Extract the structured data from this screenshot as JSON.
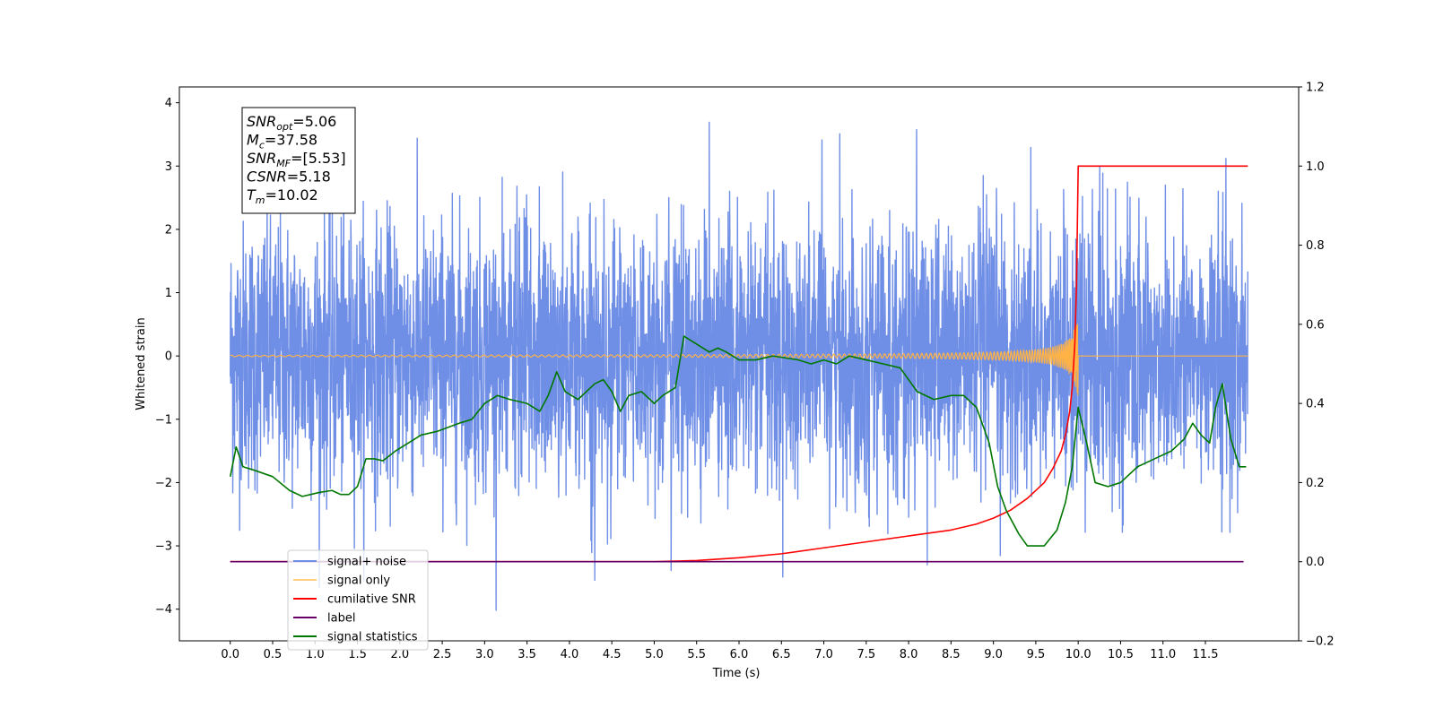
{
  "chart_data": {
    "type": "line",
    "xlabel": "Time (s)",
    "ylabel": "Whitened strain",
    "xlim": [
      -0.6,
      12.6
    ],
    "ylim": [
      -4.5,
      4.25
    ],
    "y2lim": [
      -0.2,
      1.2
    ],
    "x_ticks": [
      0.0,
      0.5,
      1.0,
      1.5,
      2.0,
      2.5,
      3.0,
      3.5,
      4.0,
      4.5,
      5.0,
      5.5,
      6.0,
      6.5,
      7.0,
      7.5,
      8.0,
      8.5,
      9.0,
      9.5,
      10.0,
      10.5,
      11.0,
      11.5
    ],
    "x_tick_labels": [
      "0.0",
      "0.5",
      "1.0",
      "1.5",
      "2.0",
      "2.5",
      "3.0",
      "3.5",
      "4.0",
      "4.5",
      "5.0",
      "5.5",
      "6.0",
      "6.5",
      "7.0",
      "7.5",
      "8.0",
      "8.5",
      "9.0",
      "9.5",
      "10.0",
      "10.5",
      "11.0",
      "11.5"
    ],
    "y_ticks": [
      -4,
      -3,
      -2,
      -1,
      0,
      1,
      2,
      3,
      4
    ],
    "y_tick_labels": [
      "−4",
      "−3",
      "−2",
      "−1",
      "0",
      "1",
      "2",
      "3",
      "4"
    ],
    "y2_ticks": [
      -0.2,
      0.0,
      0.2,
      0.4,
      0.6,
      0.8,
      1.0,
      1.2
    ],
    "y2_tick_labels": [
      "−0.2",
      "0.0",
      "0.2",
      "0.4",
      "0.6",
      "0.8",
      "1.0",
      "1.2"
    ],
    "grid": false,
    "legend_placement": "lower-left",
    "annotation": {
      "lines": [
        {
          "base": "SNR",
          "sub": "opt",
          "rest": "=5.06"
        },
        {
          "base": "M",
          "sub": "c",
          "rest": "=37.58"
        },
        {
          "base": "SNR",
          "sub": "MF",
          "rest": "=[5.53]"
        },
        {
          "base": "CSNR",
          "sub": "",
          "rest": "=5.18"
        },
        {
          "base": "T",
          "sub": "m",
          "rest": "=10.02"
        }
      ]
    },
    "series": [
      {
        "name": "signal+ noise",
        "color": "#6f8ee6",
        "axis": "left",
        "x_range": [
          0.0,
          12.0
        ],
        "envelope_upper_range": [
          1.5,
          3.9
        ],
        "envelope_lower_range": [
          -4.1,
          -1.5
        ]
      },
      {
        "name": "signal only",
        "color": "#ffb347",
        "axis": "left",
        "x_range": [
          0.0,
          12.0
        ],
        "merger_time": 10.0,
        "peak_amplitude": 0.9
      },
      {
        "name": "cumilative SNR",
        "color": "#ff0000",
        "axis": "right",
        "x": [
          0.0,
          5.0,
          5.5,
          6.0,
          6.5,
          7.0,
          7.5,
          8.0,
          8.5,
          8.8,
          9.0,
          9.2,
          9.4,
          9.6,
          9.7,
          9.8,
          9.85,
          9.9,
          9.93,
          9.96,
          9.98,
          10.0,
          12.0
        ],
        "values": [
          0.0,
          0.0,
          0.003,
          0.01,
          0.02,
          0.035,
          0.05,
          0.065,
          0.08,
          0.095,
          0.11,
          0.13,
          0.16,
          0.2,
          0.235,
          0.28,
          0.32,
          0.38,
          0.44,
          0.55,
          0.7,
          1.0,
          1.0
        ]
      },
      {
        "name": "label",
        "color": "#660066",
        "axis": "right",
        "x": [
          0.0,
          11.95
        ],
        "values": [
          0.0,
          0.0
        ]
      },
      {
        "name": "signal statistics",
        "color": "#007700",
        "axis": "right",
        "x": [
          0.0,
          0.07,
          0.15,
          0.3,
          0.5,
          0.7,
          0.85,
          0.95,
          1.05,
          1.2,
          1.3,
          1.4,
          1.5,
          1.6,
          1.7,
          1.8,
          1.95,
          2.1,
          2.25,
          2.45,
          2.7,
          2.85,
          3.0,
          3.15,
          3.3,
          3.5,
          3.65,
          3.75,
          3.85,
          3.95,
          4.1,
          4.2,
          4.3,
          4.4,
          4.5,
          4.6,
          4.7,
          4.85,
          5.0,
          5.1,
          5.25,
          5.35,
          5.5,
          5.65,
          5.75,
          5.85,
          6.0,
          6.2,
          6.4,
          6.55,
          6.7,
          6.85,
          7.0,
          7.15,
          7.3,
          7.5,
          7.7,
          7.9,
          8.1,
          8.3,
          8.5,
          8.65,
          8.8,
          8.95,
          9.05,
          9.15,
          9.3,
          9.4,
          9.5,
          9.6,
          9.75,
          9.85,
          9.93,
          10.0,
          10.1,
          10.2,
          10.35,
          10.5,
          10.7,
          10.9,
          11.1,
          11.25,
          11.35,
          11.45,
          11.55,
          11.62,
          11.7,
          11.8,
          11.9,
          11.98
        ],
        "values": [
          0.215,
          0.29,
          0.24,
          0.23,
          0.215,
          0.18,
          0.165,
          0.17,
          0.175,
          0.18,
          0.17,
          0.17,
          0.19,
          0.26,
          0.26,
          0.255,
          0.28,
          0.3,
          0.32,
          0.33,
          0.35,
          0.36,
          0.4,
          0.42,
          0.41,
          0.4,
          0.38,
          0.42,
          0.48,
          0.43,
          0.41,
          0.43,
          0.45,
          0.46,
          0.43,
          0.38,
          0.42,
          0.43,
          0.4,
          0.42,
          0.44,
          0.57,
          0.55,
          0.53,
          0.54,
          0.53,
          0.51,
          0.51,
          0.52,
          0.515,
          0.51,
          0.5,
          0.51,
          0.5,
          0.52,
          0.51,
          0.5,
          0.49,
          0.43,
          0.41,
          0.42,
          0.42,
          0.39,
          0.3,
          0.19,
          0.13,
          0.07,
          0.04,
          0.04,
          0.04,
          0.08,
          0.15,
          0.24,
          0.39,
          0.3,
          0.2,
          0.19,
          0.2,
          0.24,
          0.26,
          0.28,
          0.31,
          0.35,
          0.32,
          0.3,
          0.39,
          0.45,
          0.31,
          0.24,
          0.24
        ]
      }
    ]
  }
}
